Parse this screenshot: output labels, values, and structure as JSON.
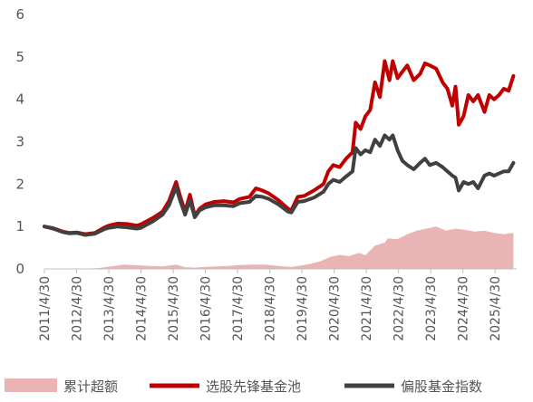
{
  "chart_data": {
    "type": "line",
    "title": "",
    "xlabel": "",
    "ylabel": "",
    "ylim": [
      0,
      6
    ],
    "yticks": [
      0,
      1,
      2,
      3,
      4,
      5,
      6
    ],
    "x_range": [
      2011.33,
      2026.0
    ],
    "xticks": [
      "2011/4/30",
      "2012/4/30",
      "2013/4/30",
      "2014/4/30",
      "2015/4/30",
      "2016/4/30",
      "2017/4/30",
      "2018/4/30",
      "2019/4/30",
      "2020/4/30",
      "2021/4/30",
      "2022/4/30",
      "2023/4/30",
      "2024/4/30",
      "2025/4/30"
    ],
    "grid": false,
    "legend_position": "bottom",
    "series": [
      {
        "name": "累计超额",
        "kind": "area",
        "color": "#eab4b4",
        "x": [
          2011.33,
          2012.33,
          2013.0,
          2013.4,
          2013.8,
          2014.33,
          2015.0,
          2015.42,
          2015.7,
          2016.0,
          2016.33,
          2017.0,
          2017.4,
          2017.8,
          2018.2,
          2018.6,
          2019.0,
          2019.3,
          2019.6,
          2019.9,
          2020.2,
          2020.5,
          2020.8,
          2021.1,
          2021.3,
          2021.6,
          2021.9,
          2022.0,
          2022.3,
          2022.6,
          2022.9,
          2023.2,
          2023.5,
          2023.8,
          2024.1,
          2024.4,
          2024.7,
          2025.0,
          2025.3,
          2025.6,
          2025.9
        ],
        "values": [
          0,
          0,
          0.02,
          0.06,
          0.1,
          0.08,
          0.06,
          0.1,
          0.04,
          0.03,
          0.05,
          0.07,
          0.09,
          0.1,
          0.1,
          0.07,
          0.05,
          0.08,
          0.12,
          0.18,
          0.28,
          0.33,
          0.3,
          0.38,
          0.32,
          0.55,
          0.62,
          0.72,
          0.7,
          0.82,
          0.9,
          0.95,
          1.0,
          0.9,
          0.95,
          0.92,
          0.88,
          0.9,
          0.85,
          0.82,
          0.85
        ]
      },
      {
        "name": "选股先锋基金池",
        "kind": "line",
        "color": "#c00000",
        "x": [
          2011.33,
          2011.6,
          2011.9,
          2012.1,
          2012.33,
          2012.6,
          2012.9,
          2013.2,
          2013.33,
          2013.6,
          2013.9,
          2014.2,
          2014.33,
          2014.7,
          2015.0,
          2015.2,
          2015.42,
          2015.55,
          2015.7,
          2015.85,
          2016.0,
          2016.15,
          2016.33,
          2016.6,
          2016.9,
          2017.2,
          2017.4,
          2017.7,
          2017.9,
          2018.1,
          2018.3,
          2018.6,
          2018.9,
          2019.0,
          2019.2,
          2019.4,
          2019.7,
          2020.0,
          2020.15,
          2020.3,
          2020.5,
          2020.7,
          2020.9,
          2021.0,
          2021.15,
          2021.3,
          2021.45,
          2021.6,
          2021.75,
          2021.9,
          2022.05,
          2022.15,
          2022.3,
          2022.45,
          2022.6,
          2022.8,
          2023.0,
          2023.15,
          2023.3,
          2023.5,
          2023.7,
          2023.85,
          2024.0,
          2024.1,
          2024.2,
          2024.35,
          2024.5,
          2024.65,
          2024.8,
          2025.0,
          2025.15,
          2025.3,
          2025.45,
          2025.6,
          2025.75,
          2025.9
        ],
        "values": [
          1.0,
          0.96,
          0.88,
          0.85,
          0.86,
          0.82,
          0.85,
          0.98,
          1.02,
          1.07,
          1.06,
          1.02,
          1.05,
          1.2,
          1.35,
          1.6,
          2.05,
          1.7,
          1.35,
          1.75,
          1.25,
          1.42,
          1.52,
          1.58,
          1.6,
          1.57,
          1.65,
          1.7,
          1.9,
          1.85,
          1.78,
          1.62,
          1.42,
          1.38,
          1.7,
          1.72,
          1.85,
          2.0,
          2.3,
          2.45,
          2.4,
          2.6,
          2.75,
          3.45,
          3.3,
          3.6,
          3.75,
          4.4,
          4.05,
          4.9,
          4.45,
          4.9,
          4.5,
          4.65,
          4.8,
          4.45,
          4.6,
          4.85,
          4.8,
          4.72,
          4.4,
          4.25,
          3.85,
          4.3,
          3.4,
          3.6,
          4.1,
          3.95,
          4.1,
          3.7,
          4.1,
          4.0,
          4.1,
          4.25,
          4.2,
          4.55
        ]
      },
      {
        "name": "偏股基金指数",
        "kind": "line",
        "color": "#404040",
        "x": [
          2011.33,
          2011.6,
          2011.9,
          2012.1,
          2012.33,
          2012.6,
          2012.9,
          2013.2,
          2013.33,
          2013.6,
          2013.9,
          2014.2,
          2014.33,
          2014.7,
          2015.0,
          2015.2,
          2015.42,
          2015.55,
          2015.7,
          2015.85,
          2016.0,
          2016.15,
          2016.33,
          2016.6,
          2016.9,
          2017.2,
          2017.4,
          2017.7,
          2017.9,
          2018.1,
          2018.3,
          2018.6,
          2018.9,
          2019.0,
          2019.2,
          2019.4,
          2019.7,
          2020.0,
          2020.15,
          2020.3,
          2020.5,
          2020.7,
          2020.9,
          2021.0,
          2021.15,
          2021.3,
          2021.45,
          2021.6,
          2021.75,
          2021.9,
          2022.05,
          2022.15,
          2022.3,
          2022.45,
          2022.6,
          2022.8,
          2023.0,
          2023.15,
          2023.3,
          2023.5,
          2023.7,
          2023.85,
          2024.0,
          2024.1,
          2024.2,
          2024.35,
          2024.5,
          2024.65,
          2024.8,
          2025.0,
          2025.15,
          2025.3,
          2025.45,
          2025.6,
          2025.75,
          2025.9
        ],
        "values": [
          1.0,
          0.95,
          0.87,
          0.84,
          0.85,
          0.8,
          0.83,
          0.94,
          0.97,
          1.0,
          0.98,
          0.95,
          0.97,
          1.12,
          1.28,
          1.5,
          1.93,
          1.6,
          1.28,
          1.62,
          1.22,
          1.38,
          1.45,
          1.5,
          1.5,
          1.48,
          1.55,
          1.58,
          1.72,
          1.7,
          1.65,
          1.52,
          1.35,
          1.33,
          1.58,
          1.6,
          1.68,
          1.82,
          2.0,
          2.1,
          2.05,
          2.18,
          2.3,
          2.85,
          2.7,
          2.8,
          2.75,
          3.05,
          2.9,
          3.15,
          3.05,
          3.15,
          2.8,
          2.55,
          2.45,
          2.35,
          2.5,
          2.6,
          2.45,
          2.5,
          2.4,
          2.3,
          2.2,
          2.15,
          1.85,
          2.05,
          2.0,
          2.05,
          1.9,
          2.2,
          2.25,
          2.2,
          2.25,
          2.3,
          2.3,
          2.5
        ]
      }
    ]
  }
}
